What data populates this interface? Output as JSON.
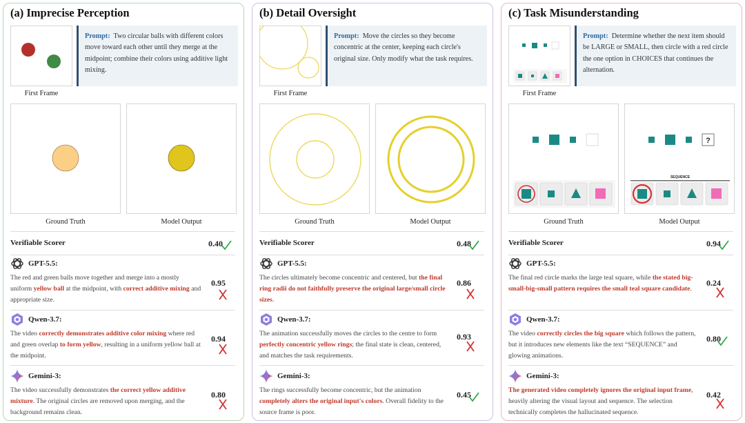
{
  "common": {
    "first_frame": "First Frame",
    "ground_truth": "Ground Truth",
    "model_output": "Model Output",
    "verifiable_scorer": "Verifiable Scorer",
    "prompt_label": "Prompt:"
  },
  "colors": {
    "check": "#2eaa4a",
    "cross": "#d63031",
    "highlight": "#c0392b"
  },
  "panels": [
    {
      "title": "(a) Imprecise Perception",
      "prompt": "Two circular balls with different colors move toward each other until they merge at the midpoint; combine their colors using additive light mixing.",
      "verifiable_score": "0.40",
      "models": [
        {
          "name": "GPT-5.5:",
          "score": "0.95",
          "verdict": "cross",
          "icon": "openai-logo-icon",
          "segments": [
            [
              "The red and green balls move together and merge into a mostly uniform ",
              false
            ],
            [
              "yellow ball",
              true
            ],
            [
              " at the midpoint, with ",
              false
            ],
            [
              "correct additive mixing",
              true
            ],
            [
              " and appropriate size.",
              false
            ]
          ]
        },
        {
          "name": "Qwen-3.7:",
          "score": "0.94",
          "verdict": "cross",
          "icon": "qwen-logo-icon",
          "segments": [
            [
              "The video ",
              false
            ],
            [
              "correctly demonstrates additive color mixing",
              true
            ],
            [
              " where red and green overlap ",
              false
            ],
            [
              "to form yellow",
              true
            ],
            [
              ", resulting in a uniform yellow ball at the midpoint.",
              false
            ]
          ]
        },
        {
          "name": "Gemini-3:",
          "score": "0.80",
          "verdict": "cross",
          "icon": "gemini-logo-icon",
          "segments": [
            [
              "The video successfully demonstrates ",
              false
            ],
            [
              "the correct yellow additive mixture",
              true
            ],
            [
              ". The original circles are removed upon merging, and the background remains clean.",
              false
            ]
          ]
        }
      ]
    },
    {
      "title": "(b) Detail Oversight",
      "prompt": "Move the circles so they become concentric at the center, keeping each circle's original size. Only modify what the task requires.",
      "verifiable_score": "0.48",
      "models": [
        {
          "name": "GPT-5.5:",
          "score": "0.86",
          "verdict": "cross",
          "icon": "openai-logo-icon",
          "segments": [
            [
              "The circles ultimately become concentric and centered, but ",
              false
            ],
            [
              "the final ring radii do not faithfully preserve the original large/small circle sizes",
              true
            ],
            [
              ".",
              false
            ]
          ]
        },
        {
          "name": "Qwen-3.7:",
          "score": "0.93",
          "verdict": "cross",
          "icon": "qwen-logo-icon",
          "segments": [
            [
              "The animation successfully moves the circles to the centre to form ",
              false
            ],
            [
              "perfectly concentric yellow rings",
              true
            ],
            [
              "; the final state is clean, centered, and matches the task requirements.",
              false
            ]
          ]
        },
        {
          "name": "Gemini-3:",
          "score": "0.45",
          "verdict": "check",
          "icon": "gemini-logo-icon",
          "segments": [
            [
              "The rings successfully become concentric, but the animation ",
              false
            ],
            [
              "completely alters the original input's colors",
              true
            ],
            [
              ". Overall fidelity to the source frame is poor.",
              false
            ]
          ]
        }
      ]
    },
    {
      "title": "(c) Task Misunderstanding",
      "prompt": "Determine whether the next item should be LARGE or SMALL, then circle with a red circle the one option in CHOICES that continues the alternation.",
      "verifiable_score": "0.94",
      "sequence_label": "SEQUENCE",
      "question_mark": "?",
      "models": [
        {
          "name": "GPT-5.5:",
          "score": "0.24",
          "verdict": "cross",
          "icon": "openai-logo-icon",
          "segments": [
            [
              "The final red circle marks the large teal square, while ",
              false
            ],
            [
              "the stated big-small-big-small pattern requires the small teal square candidate",
              true
            ],
            [
              ".",
              false
            ]
          ]
        },
        {
          "name": "Qwen-3.7:",
          "score": "0.80",
          "verdict": "check",
          "icon": "qwen-logo-icon",
          "segments": [
            [
              "The video ",
              false
            ],
            [
              "correctly circles the big square",
              true
            ],
            [
              " which follows the pattern, but it introduces new elements like the text “SEQUENCE” and glowing animations.",
              false
            ]
          ]
        },
        {
          "name": "Gemini-3:",
          "score": "0.42",
          "verdict": "cross",
          "icon": "gemini-logo-icon",
          "segments": [
            [
              "The generated video completely ignores the original input frame",
              true
            ],
            [
              ", heavily altering the visual layout and sequence. The selection technically completes the hallucinated sequence.",
              false
            ]
          ]
        }
      ]
    }
  ]
}
